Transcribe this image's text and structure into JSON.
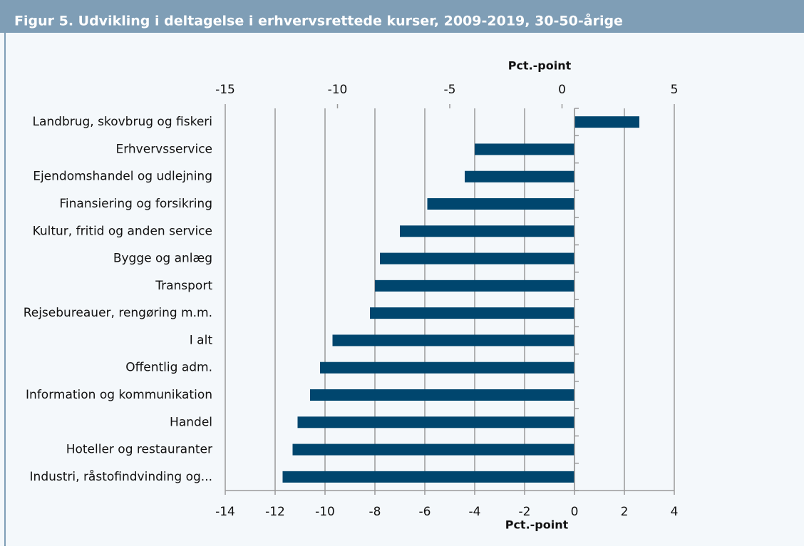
{
  "chart_data": {
    "type": "bar",
    "orientation": "horizontal",
    "title": "Figur 5. Udvikling i deltagelse i erhvervsrettede kurser, 2009-2019, 30-50-årige",
    "xlabel": "Pct.-point",
    "x2label": "Pct.-point",
    "categories": [
      "Landbrug, skovbrug og fiskeri",
      "Erhvervsservice",
      "Ejendomshandel og udlejning",
      "Finansiering og forsikring",
      "Kultur, fritid og anden service",
      "Bygge og anlæg",
      "Transport",
      "Rejsebureauer, rengøring m.m.",
      "I alt",
      "Offentlig adm.",
      "Information og kommunikation",
      "Handel",
      "Hoteller og restauranter",
      "Industri, råstofindvinding og..."
    ],
    "values": [
      2.6,
      -4.0,
      -4.4,
      -5.9,
      -7.0,
      -7.8,
      -8.0,
      -8.2,
      -9.7,
      -10.2,
      -10.6,
      -11.1,
      -11.3,
      -11.7
    ],
    "color": "#00466e",
    "xlim": [
      -14,
      4
    ],
    "xticks": [
      -14,
      -12,
      -10,
      -8,
      -6,
      -4,
      -2,
      0,
      2,
      4
    ],
    "x2lim": [
      -15,
      5
    ],
    "x2ticks": [
      -15,
      -10,
      -5,
      0,
      5
    ],
    "grid": true
  }
}
